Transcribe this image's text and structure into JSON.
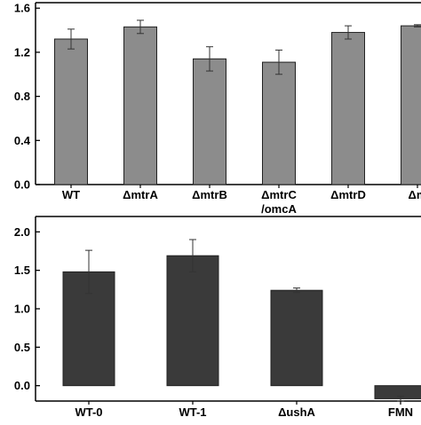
{
  "chart_data": [
    {
      "type": "bar",
      "title": "",
      "xlabel": "",
      "ylabel": "",
      "categories": [
        "WT",
        "ΔmtrA",
        "ΔmtrB",
        "ΔmtrC\n/omcA",
        "ΔmtrD",
        "Δm"
      ],
      "values": [
        1.32,
        1.43,
        1.14,
        1.11,
        1.38,
        1.44
      ],
      "errors": [
        0.09,
        0.06,
        0.11,
        0.11,
        0.06,
        0.01
      ],
      "ylim": [
        0.0,
        1.65
      ],
      "yticks": [
        "0.0",
        "0.4",
        "0.8",
        "1.2",
        "1.6"
      ],
      "ytick_values": [
        0.0,
        0.4,
        0.8,
        1.2,
        1.6
      ],
      "bar_color": "#8c8c8c",
      "grid": false,
      "legend": "none"
    },
    {
      "type": "bar",
      "title": "",
      "xlabel": "",
      "ylabel": "",
      "categories": [
        "WT-0",
        "WT-1",
        "ΔushA",
        "FMN"
      ],
      "values": [
        1.48,
        1.69,
        1.24,
        -0.17
      ],
      "errors": [
        0.28,
        0.21,
        0.03,
        0.03
      ],
      "ylim": [
        -0.2,
        2.2
      ],
      "yticks": [
        "0.0",
        "0.5",
        "1.0",
        "1.5",
        "2.0"
      ],
      "ytick_values": [
        0.0,
        0.5,
        1.0,
        1.5,
        2.0
      ],
      "bar_color": "#3a3a3a",
      "grid": false,
      "legend": "none"
    }
  ]
}
